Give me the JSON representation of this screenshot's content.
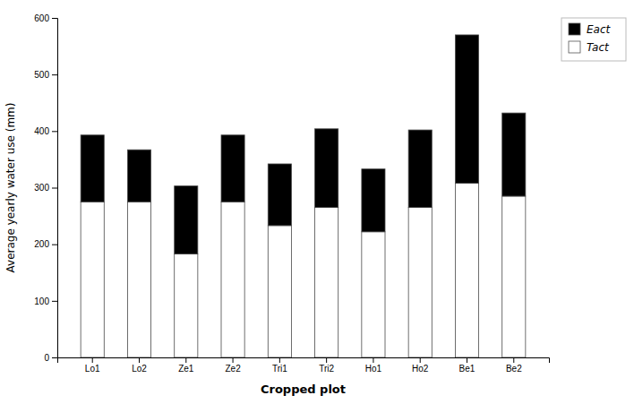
{
  "chart_data": {
    "type": "bar",
    "stacked": true,
    "xlabel": "Cropped plot",
    "ylabel": "Average yearly water use (mm)",
    "categories": [
      "Lo1",
      "Lo2",
      "Ze1",
      "Ze2",
      "Tri1",
      "Tri2",
      "Ho1",
      "Ho2",
      "Be1",
      "Be2"
    ],
    "series": [
      {
        "name": "Tact",
        "color": "#ffffff",
        "values": [
          275,
          275,
          183,
          275,
          233,
          265,
          222,
          265,
          308,
          285
        ]
      },
      {
        "name": "Eact",
        "color": "#000000",
        "values": [
          118,
          92,
          120,
          118,
          109,
          139,
          111,
          137,
          262,
          147
        ]
      }
    ],
    "ylim": [
      0,
      600
    ],
    "yticks": [
      0,
      100,
      200,
      300,
      400,
      500,
      600
    ],
    "grid": false,
    "legend": "upper right"
  }
}
